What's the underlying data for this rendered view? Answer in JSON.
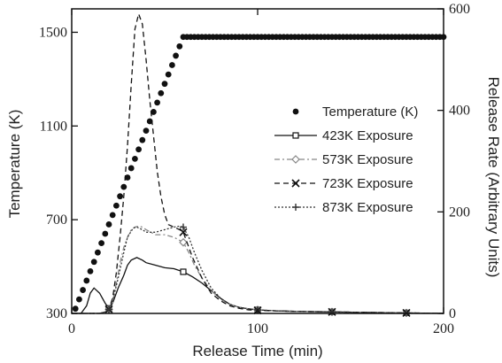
{
  "chart_data": {
    "type": "line",
    "xlabel": "Release Time (min)",
    "ylabel_left": "Temperature (K)",
    "ylabel_right": "Release Rate (Arbitrary Units)",
    "xlim": [
      0,
      200
    ],
    "ylim_left": [
      300,
      1600
    ],
    "ylim_right": [
      0,
      600
    ],
    "xticks": [
      0,
      100,
      200
    ],
    "yticks_left": [
      300,
      700,
      1100,
      1500
    ],
    "yticks_right": [
      0,
      200,
      400,
      600
    ],
    "grid": false,
    "legend_position": "right",
    "temperature": {
      "name": "Temperature (K)",
      "axis": "left",
      "color": "#111111",
      "x": [
        2,
        4,
        6,
        8,
        10,
        12,
        14,
        16,
        18,
        20,
        22,
        24,
        26,
        28,
        30,
        32,
        34,
        36,
        38,
        40,
        42,
        44,
        46,
        48,
        50,
        52,
        54,
        56,
        58,
        60,
        62,
        64,
        66,
        68,
        70,
        72,
        74,
        76,
        78,
        80,
        82,
        84,
        86,
        88,
        90,
        92,
        94,
        96,
        98,
        100,
        102,
        104,
        106,
        108,
        110,
        112,
        114,
        116,
        118,
        120,
        122,
        124,
        126,
        128,
        130,
        132,
        134,
        136,
        138,
        140,
        142,
        144,
        146,
        148,
        150,
        152,
        154,
        156,
        158,
        160,
        162,
        164,
        166,
        168,
        170,
        172,
        174,
        176,
        178,
        180,
        182,
        184,
        186,
        188,
        190,
        192,
        194,
        196,
        198,
        200
      ],
      "y": [
        320,
        360,
        400,
        440,
        480,
        520,
        560,
        600,
        640,
        680,
        720,
        760,
        800,
        840,
        880,
        920,
        960,
        1000,
        1040,
        1080,
        1120,
        1160,
        1200,
        1240,
        1280,
        1320,
        1360,
        1400,
        1440,
        1480,
        1480,
        1480,
        1480,
        1480,
        1480,
        1480,
        1480,
        1480,
        1480,
        1480,
        1480,
        1480,
        1480,
        1480,
        1480,
        1480,
        1480,
        1480,
        1480,
        1480,
        1480,
        1480,
        1480,
        1480,
        1480,
        1480,
        1480,
        1480,
        1480,
        1480,
        1480,
        1480,
        1480,
        1480,
        1480,
        1480,
        1480,
        1480,
        1480,
        1480,
        1480,
        1480,
        1480,
        1480,
        1480,
        1480,
        1480,
        1480,
        1480,
        1480,
        1480,
        1480,
        1480,
        1480,
        1480,
        1480,
        1480,
        1480,
        1480,
        1480,
        1480,
        1480,
        1480,
        1480,
        1480,
        1480,
        1480,
        1480,
        1480,
        1480
      ]
    },
    "series": [
      {
        "name": "423K Exposure",
        "axis": "right",
        "color": "#111111",
        "dash": "",
        "marker": "square",
        "marker_x": [
          20,
          60,
          100,
          140,
          180
        ],
        "x": [
          0,
          5,
          8,
          10,
          12,
          15,
          18,
          20,
          22,
          25,
          28,
          30,
          32,
          35,
          38,
          40,
          45,
          50,
          55,
          60,
          65,
          70,
          75,
          80,
          85,
          90,
          95,
          100,
          110,
          120,
          140,
          160,
          180,
          200
        ],
        "y": [
          0,
          0,
          15,
          40,
          50,
          40,
          20,
          10,
          20,
          50,
          75,
          95,
          105,
          110,
          105,
          100,
          95,
          90,
          88,
          82,
          72,
          60,
          45,
          30,
          18,
          12,
          9,
          7,
          5,
          4,
          3,
          2,
          1,
          0
        ]
      },
      {
        "name": "573K Exposure",
        "axis": "right",
        "color": "#888888",
        "dash": "6,3,2,3",
        "marker": "diamond",
        "marker_x": [
          20,
          60,
          100,
          140,
          180
        ],
        "x": [
          0,
          15,
          18,
          20,
          22,
          24,
          26,
          28,
          30,
          32,
          34,
          36,
          38,
          40,
          45,
          50,
          55,
          60,
          63,
          66,
          70,
          75,
          80,
          85,
          90,
          95,
          100,
          110,
          120,
          140,
          160,
          180,
          200
        ],
        "y": [
          0,
          0,
          3,
          8,
          20,
          60,
          100,
          130,
          150,
          165,
          170,
          172,
          170,
          165,
          155,
          155,
          150,
          140,
          120,
          95,
          70,
          45,
          28,
          18,
          12,
          9,
          7,
          5,
          4,
          3,
          2,
          1,
          0
        ]
      },
      {
        "name": "723K Exposure",
        "axis": "right",
        "color": "#111111",
        "dash": "6,4",
        "marker": "x",
        "marker_x": [
          20,
          60,
          100,
          140,
          180
        ],
        "x": [
          0,
          15,
          18,
          20,
          22,
          24,
          26,
          28,
          30,
          32,
          34,
          36,
          38,
          40,
          42,
          44,
          46,
          48,
          50,
          52,
          55,
          58,
          60,
          62,
          65,
          70,
          75,
          80,
          85,
          90,
          95,
          100,
          110,
          120,
          140,
          160,
          180,
          200
        ],
        "y": [
          0,
          0,
          3,
          8,
          30,
          80,
          150,
          230,
          330,
          450,
          560,
          590,
          570,
          500,
          420,
          350,
          280,
          230,
          195,
          175,
          170,
          165,
          160,
          140,
          110,
          70,
          40,
          25,
          15,
          10,
          7,
          6,
          5,
          4,
          3,
          2,
          1,
          0
        ]
      },
      {
        "name": "873K Exposure",
        "axis": "right",
        "color": "#333333",
        "dash": "2,2",
        "marker": "plus",
        "marker_x": [
          20,
          60,
          100,
          140,
          180
        ],
        "x": [
          0,
          15,
          18,
          20,
          22,
          25,
          28,
          30,
          33,
          35,
          38,
          40,
          45,
          50,
          55,
          58,
          60,
          63,
          66,
          70,
          75,
          80,
          85,
          90,
          95,
          100,
          110,
          120,
          140,
          160,
          180,
          200
        ],
        "y": [
          0,
          0,
          3,
          8,
          25,
          70,
          120,
          150,
          168,
          170,
          165,
          160,
          160,
          165,
          170,
          172,
          170,
          150,
          120,
          85,
          50,
          30,
          18,
          12,
          9,
          7,
          5,
          4,
          3,
          2,
          1,
          0
        ]
      }
    ]
  }
}
